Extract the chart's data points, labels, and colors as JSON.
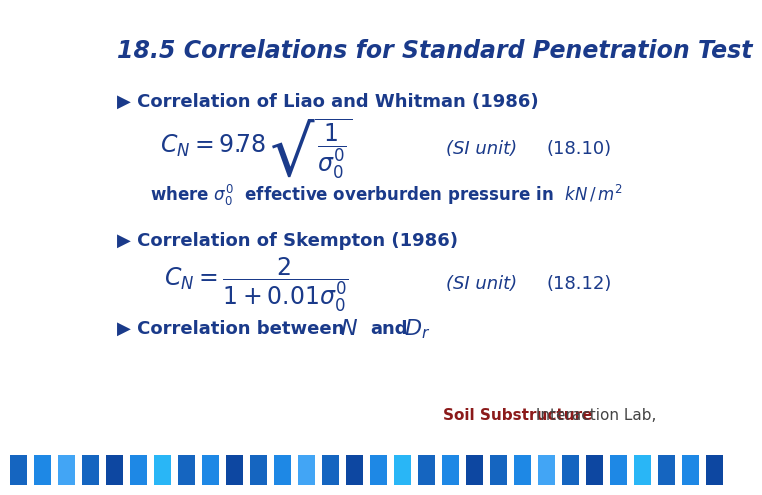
{
  "title": "18.5 Correlations for Standard Penetration Test",
  "title_color": "#1a3a8a",
  "title_fontsize": 17,
  "bullet_color": "#1a3a8a",
  "text_color": "#1a3a8a",
  "bg_color": "#ffffff",
  "footer_bar_color": "#1a8ac8",
  "footer_text1": "Soil Substructure",
  "footer_text1_color": "#8b1a1a",
  "footer_text2": " Interaction Lab,",
  "footer_text2_color": "#444444",
  "footer_fontsize": 11,
  "section1_bullet": "▶ Correlation of Liao and Whitman (1986)",
  "section2_bullet": "▶ Correlation of Skempton (1986)",
  "section3_bullet": "▶ Correlation between",
  "si_unit_label": "(SI unit)",
  "eq1_label": "(18.10)",
  "eq2_label": "(18.12)",
  "bullet_fontsize": 13,
  "annot_fontsize": 13,
  "eq1_latex": "$C_N = 9.78\\,\\sqrt{\\dfrac{1}{\\sigma^{\\prime}_0}}$",
  "eq2_latex": "$C_N = \\dfrac{2}{1 + 0.01\\sigma^{\\prime}_0}$",
  "where_latex": "where $\\sigma^{\\prime}_0$  effective overburden pressure in  $kN\\,/\\,m^2$",
  "corr_N_latex": "$N$",
  "corr_Dr_latex": "$D_r$",
  "seg_colors": [
    "#1565C0",
    "#1E88E5",
    "#42A5F5",
    "#1565C0",
    "#0D47A1",
    "#1E88E5",
    "#29B6F6",
    "#1565C0",
    "#1E88E5",
    "#0D47A1"
  ]
}
